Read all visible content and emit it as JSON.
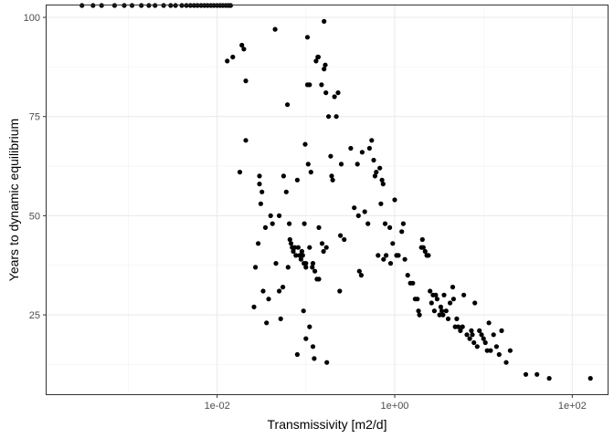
{
  "chart_data": {
    "type": "scatter",
    "xlabel": "Transmissivity [m2/d]",
    "ylabel": "Years to dynamic equilibrium",
    "x_scale": "log10",
    "xlim": [
      0.00012,
      250
    ],
    "ylim": [
      5,
      103
    ],
    "x_ticks": [
      0.01,
      1,
      100
    ],
    "x_tick_labels": [
      "1e-02",
      "1e+00",
      "1e+02"
    ],
    "y_ticks": [
      25,
      50,
      75,
      100
    ],
    "y_tick_labels": [
      "25",
      "50",
      "75",
      "100"
    ],
    "grid": true,
    "legend": "none",
    "point_color": "#000000",
    "points": [
      [
        0.0003,
        103
      ],
      [
        0.0004,
        103
      ],
      [
        0.0005,
        103
      ],
      [
        0.0007,
        103
      ],
      [
        0.0009,
        103
      ],
      [
        0.0011,
        103
      ],
      [
        0.0014,
        103
      ],
      [
        0.0017,
        103
      ],
      [
        0.002,
        103
      ],
      [
        0.0025,
        103
      ],
      [
        0.003,
        103
      ],
      [
        0.0034,
        103
      ],
      [
        0.004,
        103
      ],
      [
        0.0045,
        103
      ],
      [
        0.005,
        103
      ],
      [
        0.0055,
        103
      ],
      [
        0.006,
        103
      ],
      [
        0.0066,
        103
      ],
      [
        0.0072,
        103
      ],
      [
        0.0078,
        103
      ],
      [
        0.0085,
        103
      ],
      [
        0.0092,
        103
      ],
      [
        0.01,
        103
      ],
      [
        0.0108,
        103
      ],
      [
        0.0116,
        103
      ],
      [
        0.0125,
        103
      ],
      [
        0.0134,
        103
      ],
      [
        0.0142,
        103
      ],
      [
        0.013,
        89
      ],
      [
        0.015,
        90
      ],
      [
        0.019,
        93
      ],
      [
        0.02,
        92
      ],
      [
        0.021,
        84
      ],
      [
        0.021,
        69
      ],
      [
        0.018,
        61
      ],
      [
        0.026,
        27
      ],
      [
        0.027,
        37
      ],
      [
        0.029,
        43
      ],
      [
        0.03,
        60
      ],
      [
        0.03,
        58
      ],
      [
        0.031,
        53
      ],
      [
        0.032,
        56
      ],
      [
        0.033,
        31
      ],
      [
        0.035,
        47
      ],
      [
        0.036,
        23
      ],
      [
        0.038,
        29
      ],
      [
        0.04,
        50
      ],
      [
        0.042,
        48
      ],
      [
        0.045,
        97
      ],
      [
        0.046,
        38
      ],
      [
        0.05,
        50
      ],
      [
        0.05,
        31
      ],
      [
        0.052,
        24
      ],
      [
        0.055,
        32
      ],
      [
        0.056,
        60
      ],
      [
        0.06,
        56
      ],
      [
        0.062,
        78
      ],
      [
        0.063,
        37
      ],
      [
        0.065,
        48
      ],
      [
        0.066,
        44
      ],
      [
        0.068,
        43
      ],
      [
        0.07,
        42
      ],
      [
        0.072,
        41
      ],
      [
        0.075,
        42
      ],
      [
        0.077,
        40
      ],
      [
        0.08,
        59
      ],
      [
        0.08,
        15
      ],
      [
        0.082,
        42
      ],
      [
        0.085,
        40
      ],
      [
        0.088,
        39
      ],
      [
        0.09,
        41
      ],
      [
        0.092,
        40
      ],
      [
        0.094,
        26
      ],
      [
        0.095,
        38
      ],
      [
        0.096,
        48
      ],
      [
        0.098,
        68
      ],
      [
        0.1,
        38
      ],
      [
        0.1,
        37
      ],
      [
        0.1,
        19
      ],
      [
        0.104,
        83
      ],
      [
        0.104,
        95
      ],
      [
        0.106,
        63
      ],
      [
        0.11,
        83
      ],
      [
        0.11,
        42
      ],
      [
        0.11,
        22
      ],
      [
        0.114,
        61
      ],
      [
        0.118,
        37
      ],
      [
        0.12,
        38
      ],
      [
        0.12,
        17
      ],
      [
        0.124,
        14
      ],
      [
        0.126,
        36
      ],
      [
        0.13,
        89
      ],
      [
        0.133,
        34
      ],
      [
        0.136,
        90
      ],
      [
        0.138,
        90
      ],
      [
        0.14,
        34
      ],
      [
        0.14,
        47
      ],
      [
        0.15,
        83
      ],
      [
        0.152,
        43
      ],
      [
        0.158,
        41
      ],
      [
        0.16,
        99
      ],
      [
        0.16,
        87
      ],
      [
        0.165,
        88
      ],
      [
        0.168,
        81
      ],
      [
        0.17,
        42
      ],
      [
        0.172,
        13
      ],
      [
        0.18,
        75
      ],
      [
        0.19,
        65
      ],
      [
        0.195,
        60
      ],
      [
        0.2,
        59
      ],
      [
        0.21,
        80
      ],
      [
        0.22,
        75
      ],
      [
        0.23,
        81
      ],
      [
        0.24,
        31
      ],
      [
        0.245,
        45
      ],
      [
        0.25,
        63
      ],
      [
        0.27,
        44
      ],
      [
        0.32,
        67
      ],
      [
        0.35,
        52
      ],
      [
        0.38,
        63
      ],
      [
        0.39,
        50
      ],
      [
        0.4,
        36
      ],
      [
        0.42,
        35
      ],
      [
        0.43,
        66
      ],
      [
        0.46,
        51
      ],
      [
        0.5,
        48
      ],
      [
        0.52,
        67
      ],
      [
        0.55,
        69
      ],
      [
        0.58,
        64
      ],
      [
        0.6,
        60
      ],
      [
        0.62,
        61
      ],
      [
        0.65,
        40
      ],
      [
        0.68,
        62
      ],
      [
        0.7,
        53
      ],
      [
        0.72,
        59
      ],
      [
        0.74,
        58
      ],
      [
        0.75,
        39
      ],
      [
        0.78,
        48
      ],
      [
        0.8,
        40
      ],
      [
        0.88,
        47
      ],
      [
        0.9,
        38
      ],
      [
        0.95,
        43
      ],
      [
        1.0,
        54
      ],
      [
        1.05,
        40
      ],
      [
        1.1,
        40
      ],
      [
        1.2,
        46
      ],
      [
        1.25,
        48
      ],
      [
        1.3,
        39
      ],
      [
        1.4,
        35
      ],
      [
        1.5,
        33
      ],
      [
        1.6,
        33
      ],
      [
        1.7,
        29
      ],
      [
        1.8,
        29
      ],
      [
        1.85,
        26
      ],
      [
        1.9,
        25
      ],
      [
        2.0,
        42
      ],
      [
        2.05,
        44
      ],
      [
        2.1,
        42
      ],
      [
        2.2,
        41
      ],
      [
        2.3,
        40
      ],
      [
        2.4,
        40
      ],
      [
        2.5,
        31
      ],
      [
        2.6,
        28
      ],
      [
        2.7,
        30
      ],
      [
        2.8,
        26
      ],
      [
        2.9,
        30
      ],
      [
        3.0,
        29
      ],
      [
        3.2,
        25
      ],
      [
        3.3,
        27
      ],
      [
        3.4,
        26
      ],
      [
        3.5,
        25
      ],
      [
        3.6,
        30
      ],
      [
        3.8,
        26
      ],
      [
        4.0,
        24
      ],
      [
        4.2,
        28
      ],
      [
        4.5,
        32
      ],
      [
        4.6,
        29
      ],
      [
        4.8,
        22
      ],
      [
        5.0,
        24
      ],
      [
        5.2,
        22
      ],
      [
        5.5,
        21
      ],
      [
        5.8,
        22
      ],
      [
        6.0,
        30
      ],
      [
        6.5,
        20
      ],
      [
        7.0,
        19
      ],
      [
        7.3,
        21
      ],
      [
        7.5,
        20
      ],
      [
        7.8,
        18
      ],
      [
        8.0,
        28
      ],
      [
        8.5,
        17
      ],
      [
        9.0,
        21
      ],
      [
        9.5,
        20
      ],
      [
        10.0,
        19
      ],
      [
        10.5,
        18
      ],
      [
        11.0,
        16
      ],
      [
        11.5,
        23
      ],
      [
        12.0,
        16
      ],
      [
        13.0,
        20
      ],
      [
        14.0,
        17
      ],
      [
        15.0,
        15
      ],
      [
        16.0,
        21
      ],
      [
        18.0,
        13
      ],
      [
        20.0,
        16
      ],
      [
        30.0,
        10
      ],
      [
        40.0,
        10
      ],
      [
        55.0,
        9
      ],
      [
        160.0,
        9
      ]
    ]
  }
}
